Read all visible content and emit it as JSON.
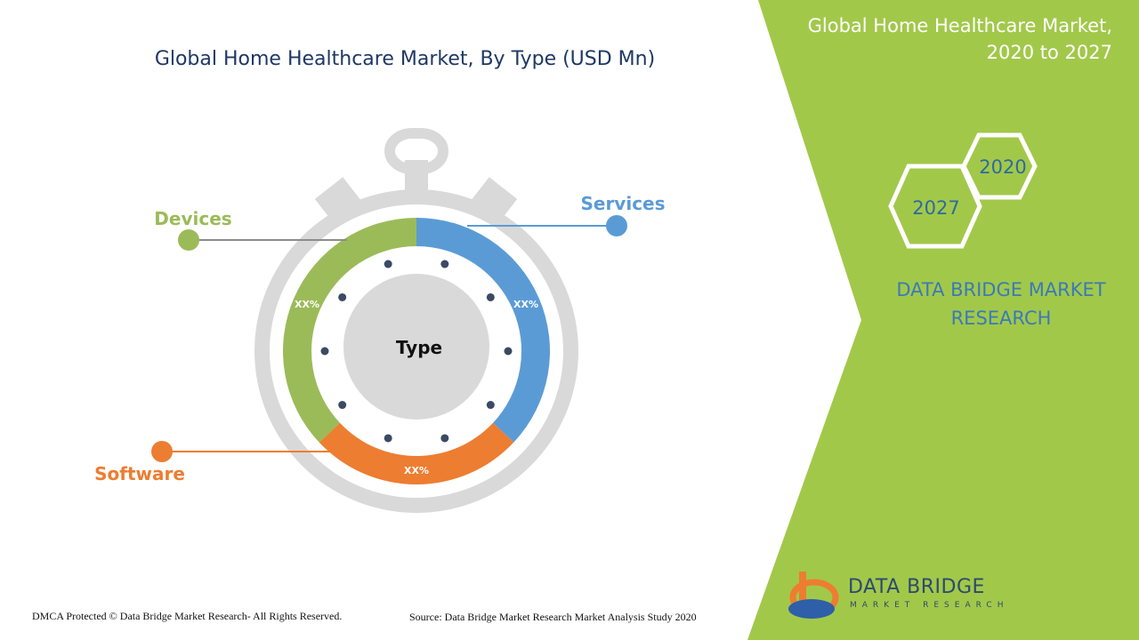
{
  "header": {
    "title": "Global Home Healthcare Market, By Type (USD Mn)"
  },
  "side_panel": {
    "title_line1": "Global Home Healthcare Market,",
    "title_line2": "2020 to 2027",
    "hex_year_a": "2020",
    "hex_year_b": "2027",
    "brand_line1": "DATA BRIDGE MARKET",
    "brand_line2": "RESEARCH"
  },
  "footer": {
    "copyright": "DMCA Protected © Data Bridge Market Research- All Rights Reserved.",
    "source": "Source: Data Bridge Market Research Market Analysis Study 2020",
    "logo_name": "DATA BRIDGE",
    "logo_sub": "MARKET RESEARCH"
  },
  "colors": {
    "services": "#5b9bd5",
    "software": "#ed7d31",
    "devices": "#9bbb59",
    "panel_green": "#a2c84a",
    "ring_gray": "#d9d9d9"
  },
  "chart_data": {
    "type": "pie",
    "style": "donut-stopwatch",
    "title": "Global Home Healthcare Market, By Type (USD Mn)",
    "center_label": "Type",
    "slices": [
      {
        "name": "Services",
        "label": "XX%",
        "share": 0.37,
        "color": "#5b9bd5"
      },
      {
        "name": "Software",
        "label": "XX%",
        "share": 0.26,
        "color": "#ed7d31"
      },
      {
        "name": "Devices",
        "label": "XX%",
        "share": 0.37,
        "color": "#9bbb59"
      }
    ]
  }
}
